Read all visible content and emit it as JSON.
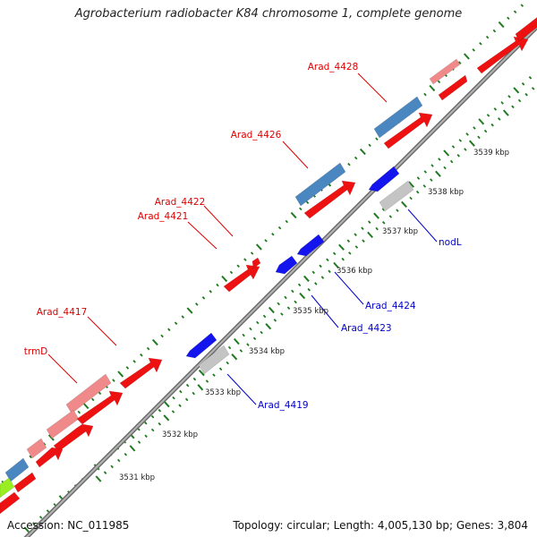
{
  "title": "Agrobacterium radiobacter K84 chromosome 1, complete genome",
  "footer": {
    "accession": "Accession: NC_011985",
    "summary": "Topology: circular; Length: 4,005,130 bp; Genes: 3,804"
  },
  "colors": {
    "backbone": "#8a8a8a",
    "tick": "#1e7a1e",
    "forward_gene": "#ee1111",
    "forward_pseudo": "#f08a8a",
    "forward_rrna": "#4a86c0",
    "forward_trna": "#99ee22",
    "reverse_gene": "#1414ee",
    "reverse_other": "#c4c4c4",
    "label_forward": "#dd0000",
    "label_reverse": "#0000cc"
  },
  "scale_labels": [
    "3531 kbp",
    "3532 kbp",
    "3533 kbp",
    "3534 kbp",
    "3535 kbp",
    "3536 kbp",
    "3537 kbp",
    "3538 kbp",
    "3539 kbp"
  ],
  "forward_labels": [
    "Arad_4428",
    "Arad_4426",
    "Arad_4422",
    "Arad_4421",
    "Arad_4417",
    "trmD"
  ],
  "reverse_labels": [
    "nodL",
    "Arad_4424",
    "Arad_4423",
    "Arad_4419"
  ]
}
